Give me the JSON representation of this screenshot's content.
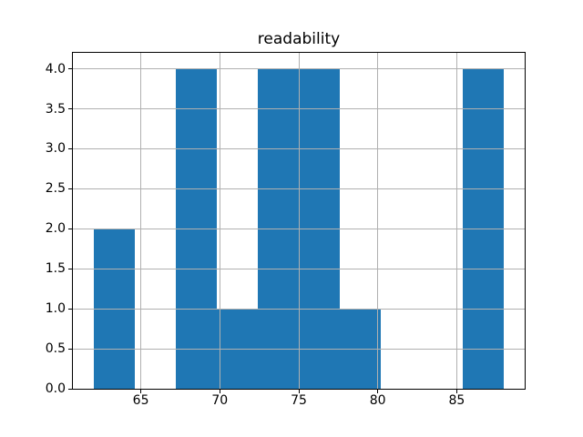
{
  "figure": {
    "background": "#ffffff",
    "frame_color": "#000000",
    "text_color": "#000000"
  },
  "chart_data": {
    "type": "bar",
    "subtype": "histogram",
    "title": "readability",
    "xlabel": "",
    "ylabel": "",
    "bar_color": "#1f77b4",
    "grid_color": "#b0b0b0",
    "grid": true,
    "grid_above_bars": true,
    "legend": false,
    "bin_edges": [
      62.0,
      64.6,
      67.2,
      69.8,
      72.4,
      75.0,
      77.6,
      80.2,
      82.8,
      85.4,
      88.0
    ],
    "counts": [
      2,
      0,
      4,
      1,
      4,
      4,
      1,
      0,
      0,
      4
    ],
    "xlim": [
      60.7,
      89.3
    ],
    "ylim": [
      0,
      4.2
    ],
    "x_ticks": [
      65,
      70,
      75,
      80,
      85
    ],
    "x_tick_labels": [
      "65",
      "70",
      "75",
      "80",
      "85"
    ],
    "y_ticks": [
      0.0,
      0.5,
      1.0,
      1.5,
      2.0,
      2.5,
      3.0,
      3.5,
      4.0
    ],
    "y_tick_labels": [
      "0.0",
      "0.5",
      "1.0",
      "1.5",
      "2.0",
      "2.5",
      "3.0",
      "3.5",
      "4.0"
    ]
  }
}
